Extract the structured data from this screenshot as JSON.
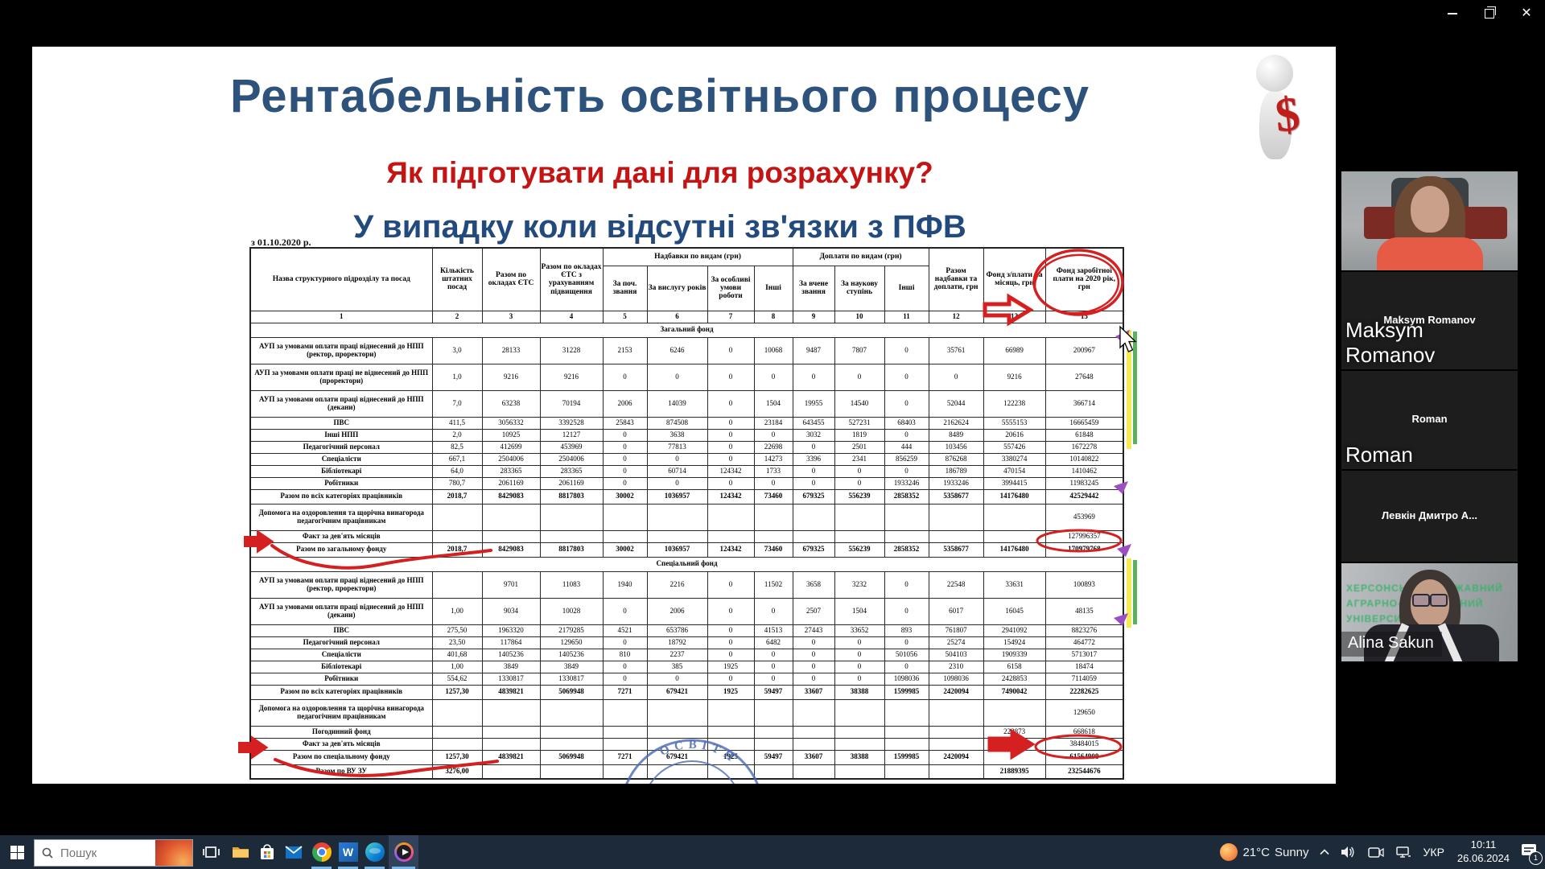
{
  "window": {
    "app_background": "#000000",
    "controls": [
      "minimize",
      "restore",
      "close"
    ]
  },
  "slide": {
    "title": "Рентабельність освітнього процесу",
    "subtitle": "Як підготувати дані для розрахунку?",
    "heading3": "У випадку коли відсутні зв'язки з ПФВ",
    "date_note": "з 01.10.2020 р.",
    "figurine": "3d-white-person-holding-red-dollar-sign",
    "figurine_dollar": "$",
    "stamp_text": "ОСВІТИ"
  },
  "table": {
    "header": {
      "col1": "Назва структурного підрозділу та посад",
      "col2": "Кількість штатних посад",
      "col3": "Разом по окладах ЄТС",
      "col4": "Разом по окладах ЄТС з урахуванням підвищення",
      "nadbavky_group": "Надбавки по видам (грн)",
      "nadbavky": [
        "За поч. звання",
        "За вислугу років",
        "За особливі умови роботи",
        "Інші"
      ],
      "doplaty_group": "Доплати по видам (грн)",
      "doplaty": [
        "За вчене звання",
        "За наукову ступінь",
        "Інші"
      ],
      "col12": "Разом надбавки та доплати, грн",
      "col13": "Фонд з/плати на місяць, грн",
      "col15": "Фонд заробітної плати на 2020 рік, грн",
      "numbers": [
        "1",
        "2",
        "3",
        "4",
        "5",
        "6",
        "7",
        "8",
        "9",
        "10",
        "11",
        "12",
        "13",
        "15"
      ]
    },
    "rows": [
      {
        "section": "Загальний фонд"
      },
      {
        "label": "АУП за умовами оплати праці віднесений до НПП (ректор, проректори)",
        "tall": true,
        "cells": [
          "3,0",
          "28133",
          "31228",
          "2153",
          "6246",
          "0",
          "10068",
          "9487",
          "7807",
          "0",
          "35761",
          "66989",
          "200967"
        ]
      },
      {
        "label": "АУП за умовами оплати праці не віднесений до НПП (проректори)",
        "tall": true,
        "cells": [
          "1,0",
          "9216",
          "9216",
          "0",
          "0",
          "0",
          "0",
          "0",
          "0",
          "0",
          "0",
          "9216",
          "27648"
        ]
      },
      {
        "label": "АУП за умовами оплати праці віднесений до НПП (декани)",
        "tall": true,
        "cells": [
          "7,0",
          "63238",
          "70194",
          "2006",
          "14039",
          "0",
          "1504",
          "19955",
          "14540",
          "0",
          "52044",
          "122238",
          "366714"
        ]
      },
      {
        "label": "ПВС",
        "cells": [
          "411,5",
          "3056332",
          "3392528",
          "25843",
          "874508",
          "0",
          "23184",
          "643455",
          "527231",
          "68403",
          "2162624",
          "5555153",
          "16665459"
        ]
      },
      {
        "label": "Інші НПП",
        "cells": [
          "2,0",
          "10925",
          "12127",
          "0",
          "3638",
          "0",
          "0",
          "3032",
          "1819",
          "0",
          "8489",
          "20616",
          "61848"
        ]
      },
      {
        "label": "Педагогічний персонал",
        "cells": [
          "82,5",
          "412699",
          "453969",
          "0",
          "77813",
          "0",
          "22698",
          "0",
          "2501",
          "444",
          "103456",
          "557426",
          "1672278"
        ]
      },
      {
        "label": "Спеціалісти",
        "cells": [
          "667,1",
          "2504006",
          "2504006",
          "0",
          "0",
          "0",
          "14273",
          "3396",
          "2341",
          "856259",
          "876268",
          "3380274",
          "10140822"
        ]
      },
      {
        "label": "Бібліотекарі",
        "cells": [
          "64,0",
          "283365",
          "283365",
          "0",
          "60714",
          "124342",
          "1733",
          "0",
          "0",
          "0",
          "186789",
          "470154",
          "1410462"
        ]
      },
      {
        "label": "Робітники",
        "cells": [
          "780,7",
          "2061169",
          "2061169",
          "0",
          "0",
          "0",
          "0",
          "0",
          "0",
          "1933246",
          "1933246",
          "3994415",
          "11983245"
        ]
      },
      {
        "label": "Разом по всіх категоріях працівників",
        "bold": true,
        "cells": [
          "2018,7",
          "8429083",
          "8817803",
          "30002",
          "1036957",
          "124342",
          "73460",
          "679325",
          "556239",
          "2858352",
          "5358677",
          "14176480",
          "42529442"
        ]
      },
      {
        "label": "Допомога на оздоровлення та щорічна винагорода педагогічним працівникам",
        "tall": true,
        "cells": [
          "",
          "",
          "",
          "",
          "",
          "",
          "",
          "",
          "",
          "",
          "",
          "",
          "453969"
        ]
      },
      {
        "label": "Факт за дев'ять місяців",
        "cells": [
          "",
          "",
          "",
          "",
          "",
          "",
          "",
          "",
          "",
          "",
          "",
          "",
          "127996357"
        ]
      },
      {
        "label": "Разом по загальному фонду",
        "bold": true,
        "cells": [
          "2018,7",
          "8429083",
          "8817803",
          "30002",
          "1036957",
          "124342",
          "73460",
          "679325",
          "556239",
          "2858352",
          "5358677",
          "14176480",
          "170979768"
        ]
      },
      {
        "section": "Спеціальний фонд"
      },
      {
        "label": "АУП за умовами оплати праці віднесений до НПП (ректор, проректори)",
        "tall": true,
        "cells": [
          "",
          "9701",
          "11083",
          "1940",
          "2216",
          "0",
          "11502",
          "3658",
          "3232",
          "0",
          "22548",
          "33631",
          "100893"
        ]
      },
      {
        "label": "АУП за умовами оплати праці віднесений до НПП (декани)",
        "tall": true,
        "cells": [
          "1,00",
          "9034",
          "10028",
          "0",
          "2006",
          "0",
          "0",
          "2507",
          "1504",
          "0",
          "6017",
          "16045",
          "48135"
        ]
      },
      {
        "label": "ПВС",
        "cells": [
          "275,50",
          "1963320",
          "2179285",
          "4521",
          "653786",
          "0",
          "41513",
          "27443",
          "33652",
          "893",
          "761807",
          "2941092",
          "8823276"
        ]
      },
      {
        "label": "Педагогічний персонал",
        "cells": [
          "23,50",
          "117864",
          "129650",
          "0",
          "18792",
          "0",
          "6482",
          "0",
          "0",
          "0",
          "25274",
          "154924",
          "464772"
        ]
      },
      {
        "label": "Спеціалісти",
        "cells": [
          "401,68",
          "1405236",
          "1405236",
          "810",
          "2237",
          "0",
          "0",
          "0",
          "0",
          "501056",
          "504103",
          "1909339",
          "5713017"
        ]
      },
      {
        "label": "Бібліотекарі",
        "cells": [
          "1,00",
          "3849",
          "3849",
          "0",
          "385",
          "1925",
          "0",
          "0",
          "0",
          "0",
          "2310",
          "6158",
          "18474"
        ]
      },
      {
        "label": "Робітники",
        "cells": [
          "554,62",
          "1330817",
          "1330817",
          "0",
          "0",
          "0",
          "0",
          "0",
          "0",
          "1098036",
          "1098036",
          "2428853",
          "7114059"
        ]
      },
      {
        "label": "Разом по всіх категоріях працівників",
        "bold": true,
        "cells": [
          "1257,30",
          "4839821",
          "5069948",
          "7271",
          "679421",
          "1925",
          "59497",
          "33607",
          "38388",
          "1599985",
          "2420094",
          "7490042",
          "22282625"
        ]
      },
      {
        "label": "Допомога на оздоровлення та щорічна винагорода педагогічним працівникам",
        "tall": true,
        "cells": [
          "",
          "",
          "",
          "",
          "",
          "",
          "",
          "",
          "",
          "",
          "",
          "",
          "129650"
        ]
      },
      {
        "label": "Погодинний фонд",
        "cells": [
          "",
          "",
          "",
          "",
          "",
          "",
          "",
          "",
          "",
          "",
          "",
          "222873",
          "668618"
        ]
      },
      {
        "label": "Факт за дев'ять місяців",
        "cells": [
          "",
          "",
          "",
          "",
          "",
          "",
          "",
          "",
          "",
          "",
          "",
          "",
          "38484015"
        ]
      },
      {
        "label": "Разом по спеціальному фонду",
        "bold": true,
        "cells": [
          "1257,30",
          "4839821",
          "5069948",
          "7271",
          "679421",
          "1925",
          "59497",
          "33607",
          "38388",
          "1599985",
          "2420094",
          "",
          "61564908"
        ]
      },
      {
        "label": "Разом по ВУ ЗУ",
        "bold": true,
        "cells": [
          "3276,00",
          "",
          "",
          "",
          "",
          "",
          "",
          "",
          "",
          "",
          "",
          "21889395",
          "232544676"
        ]
      }
    ]
  },
  "annotations": {
    "red_pen_color": "#d42020",
    "items": [
      "circle-around-fund-2020-header",
      "arrow-over-month-fund-header",
      "arrow-and-scribble-at-total-general-fund-row",
      "circle-around-170979768",
      "arrow-and-scribble-at-total-special-fund-row",
      "arrow-in-month-fund-cell",
      "circle-around-61564908"
    ],
    "highlight_yellow": "#f6e84b",
    "highlight_green": "#53ae53",
    "purple_marks": "#9b4fc0",
    "stamp_color": "#4a69b4"
  },
  "sidebar": {
    "tiles": [
      {
        "type": "video",
        "desc": "woman-orange-shirt-red-chair",
        "name_label": ""
      },
      {
        "type": "avatar",
        "center_label": "Maksym Romanov",
        "overlay_label": "Maksym Romanov"
      },
      {
        "type": "avatar",
        "center_label": "Roman",
        "overlay_label": "Roman"
      },
      {
        "type": "avatar",
        "center_label": "Левкін Дмитро А...",
        "overlay_label": ""
      },
      {
        "type": "video",
        "desc": "woman-glasses-dark-jacket",
        "name_label": "Alina Sakun",
        "background_text": [
          "ХЕРСОНСЬКИЙ ДЕРЖАВНИЙ",
          "АГРАРНО-ЕКОНОМІЧНИЙ",
          "УНІВЕРСИТЕТ"
        ]
      }
    ]
  },
  "taskbar": {
    "search_placeholder": "Пошук",
    "apps": [
      "task-view",
      "file-explorer",
      "microsoft-store",
      "mail",
      "chrome",
      "word",
      "edge",
      "media-player"
    ],
    "word_letter": "W",
    "tray": {
      "weather_temp": "21°C",
      "weather_cond": "Sunny",
      "language": "УКР",
      "time": "10:11",
      "date": "26.06.2024",
      "notification_badge": "1"
    }
  }
}
